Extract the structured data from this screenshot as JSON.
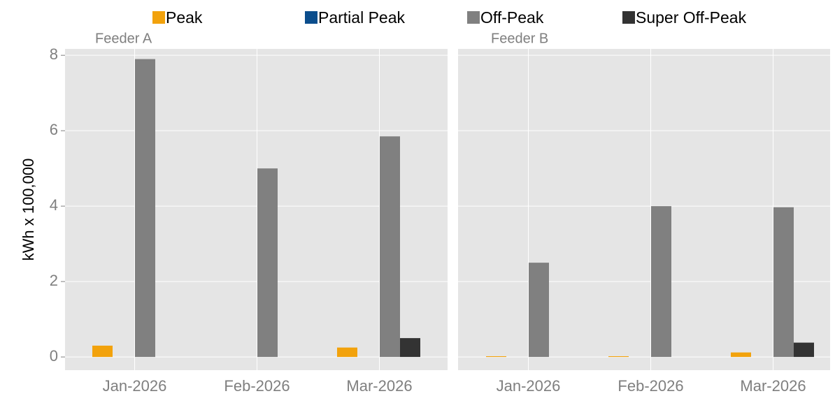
{
  "chart_data": {
    "type": "bar",
    "ylabel": "kWh x 100,000",
    "categories": [
      "Jan-2026",
      "Feb-2026",
      "Mar-2026"
    ],
    "series": [
      {
        "name": "Peak",
        "color": "#f2a20c"
      },
      {
        "name": "Partial Peak",
        "color": "#0b4d8c"
      },
      {
        "name": "Off-Peak",
        "color": "#808080"
      },
      {
        "name": "Super Off-Peak",
        "color": "#333333"
      }
    ],
    "ylim": [
      -0.35,
      8.17
    ],
    "yticks": [
      0,
      2,
      4,
      6,
      8
    ],
    "grid": true,
    "panels": [
      {
        "title": "Feeder A",
        "values": [
          [
            0.3,
            0,
            0.25
          ],
          [
            0,
            0,
            0
          ],
          [
            7.9,
            5.0,
            5.85
          ],
          [
            0,
            0,
            0.5
          ]
        ]
      },
      {
        "title": "Feeder B",
        "values": [
          [
            0.02,
            0.02,
            0.12
          ],
          [
            0,
            0,
            0
          ],
          [
            2.5,
            4.0,
            3.97
          ],
          [
            0,
            0,
            0.38
          ]
        ]
      }
    ]
  }
}
